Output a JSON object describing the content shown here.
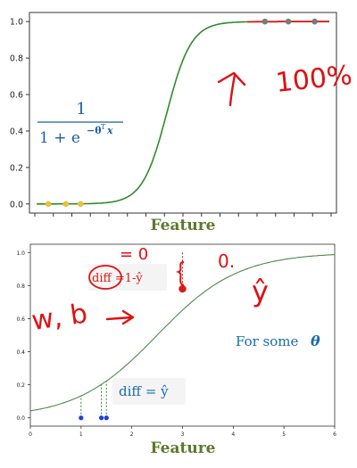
{
  "chart_data": [
    {
      "type": "line",
      "title": "",
      "xlabel": "Feature",
      "ylabel": "",
      "ylim": [
        -0.05,
        1.05
      ],
      "yticks": [
        "0.0",
        "0.2",
        "0.4",
        "0.6",
        "0.8",
        "1.0"
      ],
      "ytick_values": [
        0.0,
        0.2,
        0.4,
        0.6,
        0.8,
        1.0
      ],
      "grid": false,
      "series": [
        {
          "kind": "sigmoid",
          "x0": 0.445,
          "k": 24,
          "color": "#2e8b2e"
        },
        {
          "kind": "points",
          "x": [
            0.04,
            0.1,
            0.15
          ],
          "y": [
            0.0,
            0.0,
            0.0
          ],
          "color": "#e8c23a"
        },
        {
          "kind": "points",
          "x": [
            0.78,
            0.86,
            0.95
          ],
          "y": [
            1.0,
            1.0,
            1.0
          ],
          "color": "#7a7a7a"
        }
      ],
      "formula": {
        "numerator": "1",
        "denominator_prefix": "1 + e",
        "exponent": "−θ",
        "exponent_sup": "T",
        "exponent_var": "x"
      },
      "annotations": {
        "handwritten_percent": "100%"
      }
    },
    {
      "type": "line",
      "title": "",
      "xlabel": "Feature",
      "ylabel": "",
      "xlim": [
        0,
        6
      ],
      "ylim": [
        -0.05,
        1.05
      ],
      "xticks": [
        "0",
        "1",
        "2",
        "3",
        "4",
        "5",
        "6"
      ],
      "yticks": [
        "0.0",
        "0.2",
        "0.4",
        "0.6",
        "0.8",
        "1.0"
      ],
      "grid": false,
      "series": [
        {
          "kind": "sigmoid",
          "x0": 2.5,
          "k": 1.25,
          "color": "#4a8a4a"
        },
        {
          "kind": "points",
          "x": [
            1.0,
            1.4,
            1.5
          ],
          "y": [
            0.0,
            0.0,
            0.0
          ],
          "color": "#1f3fd6"
        },
        {
          "kind": "points",
          "x": [
            3.0
          ],
          "y": [
            0.78
          ],
          "color": "#d81b1b"
        }
      ],
      "annotations": {
        "diff_top": "diff =1-ŷ",
        "diff_bottom": "diff = ŷ",
        "for_some": "For some",
        "theta": "θ",
        "handwritten_wb": "w, b",
        "handwritten_zero": "= 0",
        "handwritten_top_right": "0.",
        "handwritten_yhat": "ŷ"
      }
    }
  ],
  "colors": {
    "feature_label": "#5a7a2a",
    "formula": "#1a5fa0",
    "annotation_blue": "#1a6ab0",
    "handwriting_red": "#e01010"
  }
}
